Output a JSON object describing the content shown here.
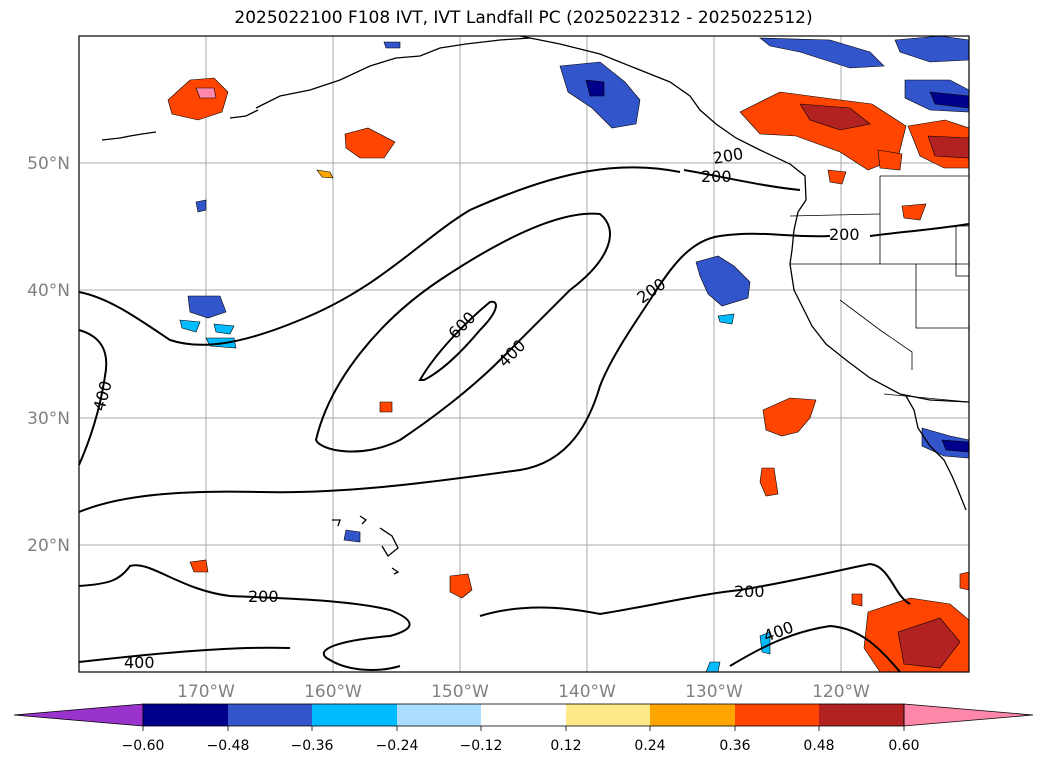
{
  "title": "2025022100 F108 IVT, IVT Landfall PC (2025022312 - 2025022512)",
  "map": {
    "lon_ticks": [
      "170°W",
      "160°W",
      "150°W",
      "140°W",
      "130°W",
      "120°W"
    ],
    "lat_ticks": [
      "50°N",
      "40°N",
      "30°N",
      "20°N"
    ],
    "contour_labels": [
      "600",
      "400",
      "400",
      "200",
      "200",
      "200",
      "200",
      "200",
      "200",
      "400",
      "400"
    ],
    "grid": true
  },
  "colorbar": {
    "ticks": [
      "−0.60",
      "−0.48",
      "−0.36",
      "−0.24",
      "−0.12",
      "0.12",
      "0.24",
      "0.36",
      "0.48",
      "0.60"
    ],
    "colors": [
      "#9933cc",
      "#00008b",
      "#3355cc",
      "#00bbff",
      "#aaddff",
      "#ffffff",
      "#ffe88a",
      "#ffa500",
      "#ff4500",
      "#b22222",
      "#ff88aa"
    ]
  }
}
